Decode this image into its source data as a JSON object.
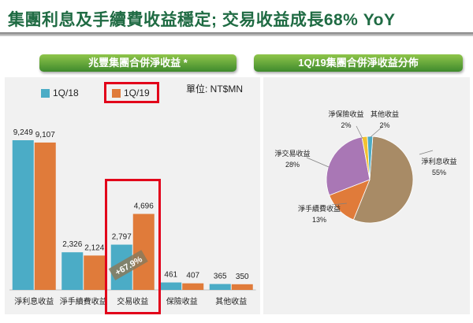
{
  "slide_title": "集團利息及手續費收益穩定; 交易收益成長68% YoY",
  "left_panel": {
    "banner": "兆豐集團合併淨收益 *",
    "unit": "單位: NT$MN"
  },
  "right_panel": {
    "banner": "1Q/19集團合併淨收益分佈"
  },
  "growth_label": "+67.9%",
  "colors": {
    "title": "#1f6b43",
    "q1_18": "#4bacc6",
    "q1_19": "#e07b3a",
    "highlight": "#e2001a"
  },
  "chart_data": [
    {
      "type": "bar",
      "categories": [
        "淨利息收益",
        "淨手續費收益",
        "交易收益",
        "保險收益",
        "其他收益"
      ],
      "series": [
        {
          "name": "1Q/18",
          "values": [
            9249,
            2326,
            2797,
            461,
            365
          ],
          "labels": [
            "9,249",
            "2,326",
            "2,797",
            "461",
            "365"
          ]
        },
        {
          "name": "1Q/19",
          "values": [
            9107,
            2124,
            4696,
            407,
            350
          ],
          "labels": [
            "9,107",
            "2,124",
            "4,696",
            "407",
            "350"
          ]
        }
      ],
      "ylim": [
        0,
        10000
      ],
      "legend": "top-left"
    },
    {
      "type": "pie",
      "slices": [
        {
          "label": "淨利息收益",
          "value": 55,
          "display": "55%",
          "color": "#a88b66"
        },
        {
          "label": "淨手續費收益",
          "value": 13,
          "display": "13%",
          "color": "#e07b3a"
        },
        {
          "label": "淨交易收益",
          "value": 28,
          "display": "28%",
          "color": "#a977b5"
        },
        {
          "label": "淨保險收益",
          "value": 2,
          "display": "2%",
          "color": "#f2c230"
        },
        {
          "label": "其他收益",
          "value": 2,
          "display": "2%",
          "color": "#4bacc6"
        }
      ]
    }
  ]
}
